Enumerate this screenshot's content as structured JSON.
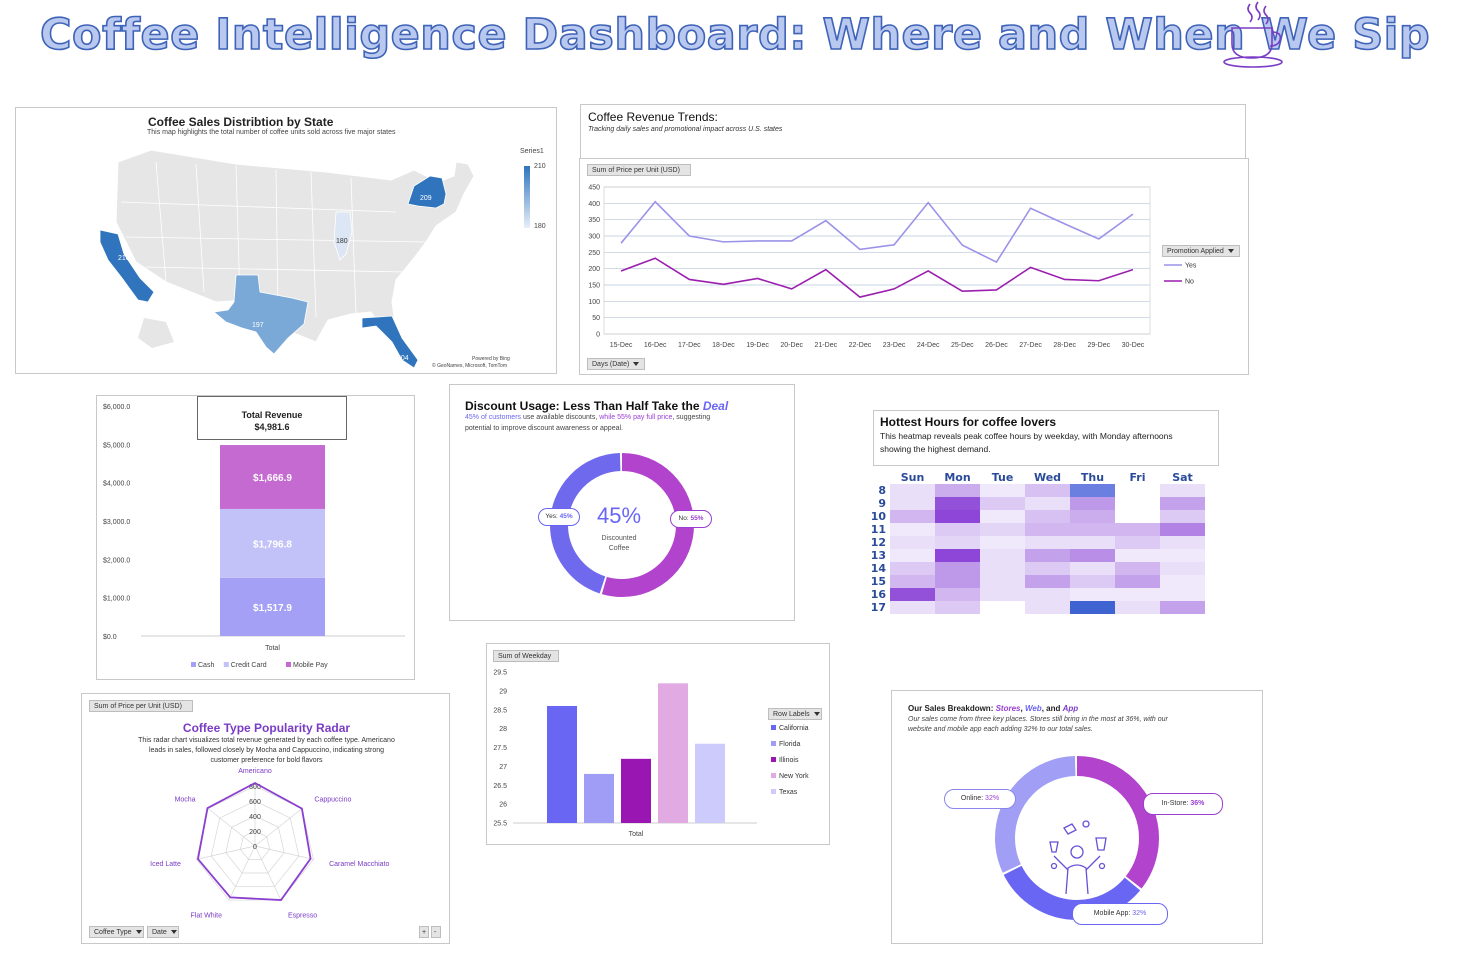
{
  "page": {
    "title": "Coffee Intelligence Dashboard: Where and When We Sip"
  },
  "map_panel": {
    "title": "Coffee Sales Distribtion by State",
    "subtitle": "This map highlights the total number of coffee units sold across five major states",
    "legend_title": "Series1",
    "legend_max": "210",
    "legend_min": "180",
    "powered_by": "Powered by Bing",
    "credits": "© GeoNames, Microsoft, TomTom"
  },
  "trend_panel": {
    "title": "Coffee Revenue Trends:",
    "subtitle": "Tracking daily sales  and promotional impact across U.S. states",
    "field_tag": "Sum of Price per Unit (USD)",
    "legend_filter": "Promotion Applied",
    "axis_filter": "Days (Date)"
  },
  "revenue_panel": {
    "box_title": "Total Revenue",
    "box_value": "$4,981.6"
  },
  "discount_panel": {
    "title_main": "Discount Usage: Less Than Half Take the ",
    "title_emph": "Deal",
    "desc_part1": "45% of customers",
    "desc_part2": " use available discounts, ",
    "desc_part3": "while 55% pay full price",
    "desc_part4": ", suggesting",
    "desc_line2": "potential to improve discount awareness or appeal.",
    "center_value": "45%",
    "center_label_1": "Discounted",
    "center_label_2": "Coffee",
    "yes_label": "Yes: ",
    "yes_value": "45%",
    "no_label": "No: ",
    "no_value": "55%"
  },
  "heatmap_panel": {
    "title": "Hottest Hours for coffee lovers",
    "desc_1": "This heatmap reveals peak coffee hours by weekday, with Monday afternoons",
    "desc_2": "showing the highest demand."
  },
  "radar_panel": {
    "field_tag": "Sum of Price per Unit (USD)",
    "title": "Coffee Type Popularity Radar",
    "desc_1": "This radar chart visualizes total revenue generated by each coffee type. Americano",
    "desc_2": "leads in sales, followed closely by Mocha and Cappuccino, indicating strong",
    "desc_3": "customer preference for bold flavors",
    "filter_1": "Coffee Type",
    "filter_2": "Date",
    "plus": "+",
    "minus": "-"
  },
  "weekday_panel": {
    "field_tag": "Sum of Weekday",
    "legend_filter": "Row Labels"
  },
  "channel_panel": {
    "title_pre": "Our Sales Breakdown: ",
    "title_stores": "Stores",
    "title_sep1": ", ",
    "title_web": "Web",
    "title_sep2": ", and ",
    "title_app": "App",
    "desc_1": "Our sales come from three key places. Stores still bring in the most at 36%, with our",
    "desc_2": "website and mobile app each adding 32% to our total sales.",
    "online_label": "Online: ",
    "online_value": "32%",
    "instore_label": "In-Store: ",
    "instore_value": "36%",
    "mobile_label": "Mobile App: ",
    "mobile_value": "32%"
  },
  "colors": {
    "title_fill": "#b8c8ee",
    "title_stroke": "#3f63b8",
    "purple": "#9a3fd0",
    "violet": "#7a3cc4",
    "indigo": "#6a68f0",
    "map_blue": "#2f74bd"
  },
  "icons": [
    "coffee-cup-icon",
    "barista-icon"
  ],
  "chart_data": [
    {
      "id": "map",
      "type": "map",
      "title": "Coffee Sales Distribtion by State",
      "regions": [
        {
          "state": "California",
          "value": 210
        },
        {
          "state": "New York",
          "value": 209
        },
        {
          "state": "Texas",
          "value": 197
        },
        {
          "state": "Florida",
          "value": 204
        },
        {
          "state": "Illinois",
          "value": 180
        }
      ],
      "legend": {
        "title": "Series1",
        "max": 210,
        "min": 180
      }
    },
    {
      "id": "trend",
      "type": "line",
      "title": "Coffee Revenue Trends:",
      "categories": [
        "15-Dec",
        "16-Dec",
        "17-Dec",
        "18-Dec",
        "19-Dec",
        "20-Dec",
        "21-Dec",
        "22-Dec",
        "23-Dec",
        "24-Dec",
        "25-Dec",
        "26-Dec",
        "27-Dec",
        "28-Dec",
        "29-Dec",
        "30-Dec"
      ],
      "series": [
        {
          "name": "Yes",
          "color": "#9b93e8",
          "values": [
            278,
            405,
            300,
            282,
            285,
            285,
            347,
            259,
            273,
            402,
            272,
            220,
            385,
            337,
            291,
            367
          ]
        },
        {
          "name": "No",
          "color": "#9b1fae",
          "values": [
            193,
            232,
            167,
            152,
            170,
            138,
            197,
            113,
            138,
            193,
            131,
            135,
            204,
            167,
            163,
            197
          ]
        }
      ],
      "ylim": [
        0,
        450
      ],
      "yticks": [
        0,
        50,
        100,
        150,
        200,
        250,
        300,
        350,
        400,
        450
      ],
      "grid": true,
      "legend": "right"
    },
    {
      "id": "revenue",
      "type": "bar",
      "stacked": true,
      "categories": [
        "Total"
      ],
      "series": [
        {
          "name": "Cash",
          "color": "#a3a0f6",
          "values": [
            1517.9
          ],
          "label": "$1,517.9"
        },
        {
          "name": "Credit Card",
          "color": "#c3c2f8",
          "values": [
            1796.8
          ],
          "label": "$1,796.8"
        },
        {
          "name": "Mobile Pay",
          "color": "#c46ad0",
          "values": [
            1666.9
          ],
          "label": "$1,666.9"
        }
      ],
      "ylim": [
        0,
        6000
      ],
      "yticks": [
        "$0.0",
        "$1,000.0",
        "$2,000.0",
        "$3,000.0",
        "$4,000.0",
        "$5,000.0",
        "$6,000.0"
      ],
      "legend": "bottom"
    },
    {
      "id": "discount",
      "type": "pie",
      "donut": true,
      "slices": [
        {
          "name": "Yes",
          "value": 45,
          "color": "#6f69ee"
        },
        {
          "name": "No",
          "value": 55,
          "color": "#b143cc"
        }
      ]
    },
    {
      "id": "heatmap",
      "type": "heatmap",
      "title": "Hottest Hours for coffee lovers",
      "columns": [
        "Sun",
        "Mon",
        "Tue",
        "Wed",
        "Thu",
        "Fri",
        "Sat"
      ],
      "rows": [
        "8",
        "9",
        "10",
        "11",
        "12",
        "13",
        "14",
        "15",
        "16",
        "17"
      ],
      "values": [
        [
          0.1,
          0.35,
          0.05,
          0.25,
          0.7,
          0.0,
          0.1
        ],
        [
          0.1,
          0.8,
          0.2,
          0.1,
          0.45,
          0.0,
          0.4
        ],
        [
          0.3,
          0.85,
          0.05,
          0.25,
          0.35,
          0.0,
          0.2
        ],
        [
          0.05,
          0.2,
          0.15,
          0.3,
          0.3,
          0.3,
          0.55
        ],
        [
          0.1,
          0.15,
          0.05,
          0.1,
          0.1,
          0.2,
          0.1
        ],
        [
          0.05,
          0.85,
          0.1,
          0.4,
          0.5,
          0.05,
          0.05
        ],
        [
          0.2,
          0.45,
          0.1,
          0.2,
          0.1,
          0.3,
          0.1
        ],
        [
          0.3,
          0.45,
          0.1,
          0.4,
          0.2,
          0.4,
          0.05
        ],
        [
          0.8,
          0.3,
          0.1,
          0.1,
          0.05,
          0.05,
          0.05
        ],
        [
          0.1,
          0.2,
          0.0,
          0.1,
          0.9,
          0.1,
          0.4
        ]
      ]
    },
    {
      "id": "radar",
      "type": "radar",
      "title": "Coffee Type Popularity Radar",
      "categories": [
        "Americano",
        "Cappuccino",
        "Caramel Macchiato",
        "Espresso",
        "Flat White",
        "Iced Latte",
        "Mocha"
      ],
      "values": [
        840,
        800,
        760,
        800,
        760,
        780,
        810
      ],
      "ylim": [
        0,
        800
      ],
      "ticks": [
        0,
        200,
        400,
        600,
        800
      ]
    },
    {
      "id": "weekday",
      "type": "bar",
      "categories": [
        "Total"
      ],
      "series": [
        {
          "name": "California",
          "value": 28.6,
          "color": "#6a66f4"
        },
        {
          "name": "Florida",
          "value": 26.8,
          "color": "#9f9df5"
        },
        {
          "name": "Illinois",
          "value": 27.2,
          "color": "#9a16b3"
        },
        {
          "name": "New York",
          "value": 29.2,
          "color": "#e1aae2"
        },
        {
          "name": "Texas",
          "value": 27.6,
          "color": "#cdcbfb"
        }
      ],
      "ylim": [
        25.5,
        29.5
      ],
      "yticks": [
        25.5,
        26,
        26.5,
        27,
        27.5,
        28,
        28.5,
        29,
        29.5
      ],
      "legend": "right"
    },
    {
      "id": "channels",
      "type": "pie",
      "donut": true,
      "slices": [
        {
          "name": "In-Store",
          "value": 36,
          "color": "#b143cc"
        },
        {
          "name": "Mobile App",
          "value": 32,
          "color": "#6a66f4"
        },
        {
          "name": "Online",
          "value": 32,
          "color": "#a19ef5"
        }
      ]
    }
  ]
}
